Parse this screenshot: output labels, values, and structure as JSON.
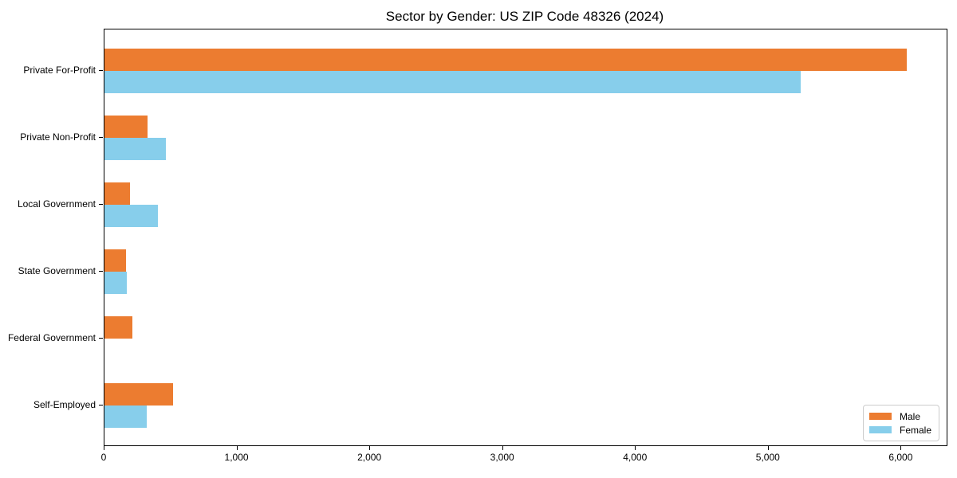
{
  "title": "Sector by Gender: US ZIP Code 48326 (2024)",
  "chart_data": {
    "type": "bar",
    "orientation": "horizontal",
    "title": "Sector by Gender: US ZIP Code 48326 (2024)",
    "categories": [
      "Private For-Profit",
      "Private Non-Profit",
      "Local Government",
      "State Government",
      "Federal Government",
      "Self-Employed"
    ],
    "series": [
      {
        "name": "Male",
        "color": "#EC7C30",
        "values": [
          6040,
          325,
          190,
          160,
          210,
          515
        ]
      },
      {
        "name": "Female",
        "color": "#87CEEB",
        "values": [
          5240,
          465,
          400,
          170,
          0,
          320
        ]
      }
    ],
    "xlabel": "",
    "ylabel": "",
    "xlim": [
      0,
      6340
    ],
    "xticks": [
      0,
      1000,
      2000,
      3000,
      4000,
      5000,
      6000
    ],
    "xtick_labels": [
      "0",
      "1,000",
      "2,000",
      "3,000",
      "4,000",
      "5,000",
      "6,000"
    ],
    "legend_position": "lower right",
    "grid": false,
    "colors": {
      "male": "#EC7C30",
      "female": "#87CEEB",
      "spine": "#000000",
      "background": "#ffffff"
    }
  }
}
